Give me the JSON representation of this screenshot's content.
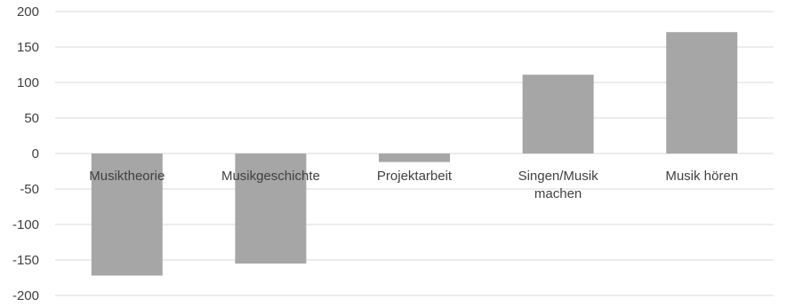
{
  "chart_data": {
    "type": "bar",
    "title": "",
    "xlabel": "",
    "ylabel": "",
    "ylim": [
      -200,
      200
    ],
    "yticks": [
      200,
      150,
      100,
      50,
      0,
      -50,
      -100,
      -150,
      -200
    ],
    "grid": true,
    "legend": "none",
    "bar_color": "#a6a6a6",
    "categories": [
      [
        "Musiktheorie"
      ],
      [
        "Musikgeschichte"
      ],
      [
        "Projektarbeit"
      ],
      [
        "Singen/Musik",
        "machen"
      ],
      [
        "Musik hören"
      ]
    ],
    "values": [
      -172,
      -155,
      -12,
      111,
      171
    ]
  }
}
